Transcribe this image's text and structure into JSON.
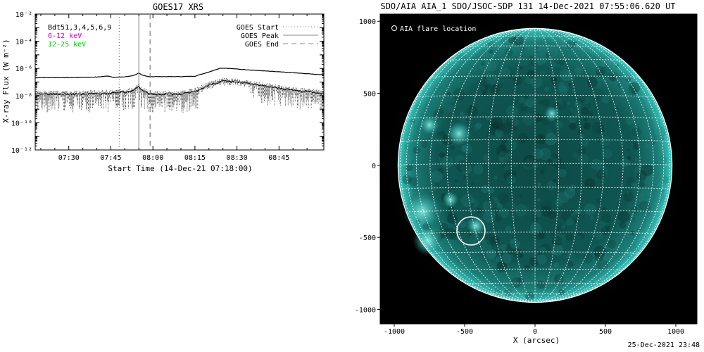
{
  "chart_data": [
    {
      "type": "line",
      "title": "GOES17 XRS",
      "xlabel": "Start Time (14-Dec-21 07:18:00)",
      "ylabel": "X-ray Flux (W m⁻²)",
      "x_ticks": [
        "07:30",
        "07:45",
        "08:00",
        "08:15",
        "08:30",
        "08:45"
      ],
      "xlim": [
        "07:18",
        "09:01"
      ],
      "y_scale": "log",
      "ylim": [
        1e-12,
        0.01
      ],
      "y_ticks": [
        {
          "value": 1e-12,
          "label": "10⁻¹²"
        },
        {
          "value": 1e-10,
          "label": "10⁻¹⁰"
        },
        {
          "value": 1e-08,
          "label": "10⁻⁸"
        },
        {
          "value": 1e-06,
          "label": "10⁻⁶"
        },
        {
          "value": 0.0001,
          "label": "10⁻⁴"
        },
        {
          "value": 0.01,
          "label": "10⁻²"
        }
      ],
      "legend_left": {
        "placement": "top-left",
        "entries": [
          {
            "label": "Bdt51,3,4,5,6,9",
            "color": "#000000"
          },
          {
            "label": "6-12 keV",
            "color": "#d400d4"
          },
          {
            "label": "12-25 keV",
            "color": "#00d400"
          }
        ]
      },
      "legend_right": {
        "placement": "top-right",
        "entries": [
          {
            "label": "GOES Start",
            "style": "dotted"
          },
          {
            "label": "GOES Peak",
            "style": "solid"
          },
          {
            "label": "GOES End",
            "style": "dashed"
          }
        ]
      },
      "event_lines": {
        "start": "07:48",
        "peak": "07:55",
        "end": "07:59"
      },
      "series": [
        {
          "color": "#000000",
          "style": "solid",
          "x": [
            "07:18",
            "07:30",
            "07:40",
            "07:44",
            "07:46",
            "07:50",
            "07:53",
            "07:55",
            "07:56",
            "07:58",
            "08:00",
            "08:05",
            "08:10",
            "08:15",
            "08:20",
            "08:24",
            "08:26",
            "08:30",
            "08:40",
            "08:50",
            "09:01"
          ],
          "y": [
            2.1e-07,
            2.1e-07,
            2.3e-07,
            2.8e-07,
            2.2e-07,
            2.4e-07,
            3e-07,
            4.5e-07,
            3.3e-07,
            2.6e-07,
            2.5e-07,
            2.5e-07,
            2.5e-07,
            2.7e-07,
            5.5e-07,
            1.05e-06,
            1.05e-06,
            9e-07,
            6.5e-07,
            4.8e-07,
            3.4e-07
          ]
        },
        {
          "color": "#000000",
          "style": "dotted-noisy",
          "x": [
            "07:18",
            "07:30",
            "07:40",
            "07:45",
            "07:50",
            "07:53",
            "07:55",
            "07:56",
            "07:58",
            "08:00",
            "08:05",
            "08:10",
            "08:15",
            "08:20",
            "08:25",
            "08:30",
            "08:40",
            "08:50",
            "09:01"
          ],
          "y": [
            1.3e-08,
            1.3e-08,
            1.4e-08,
            1.5e-08,
            1.8e-08,
            2.5e-08,
            4.5e-08,
            2.5e-08,
            1.5e-08,
            1.3e-08,
            1.3e-08,
            1.3e-08,
            2e-08,
            6e-08,
            1.2e-07,
            1e-07,
            5e-08,
            2.5e-08,
            1.5e-08
          ]
        }
      ]
    },
    {
      "type": "heatmap",
      "title": "SDO/AIA AIA_1 SDO/JSOC-SDP 131 14-Dec-2021 07:55:06.620 UT",
      "xlabel": "X (arcsec)",
      "ylabel": "",
      "xlim": [
        -1100,
        1150
      ],
      "ylim": [
        -1100,
        1050
      ],
      "x_ticks": [
        -1000,
        -500,
        0,
        500,
        1000
      ],
      "y_ticks": [
        -1000,
        -500,
        0,
        500,
        1000
      ],
      "grid": "heliographic, 10 deg",
      "solar_radius_arcsec": 973,
      "colormap": "aia131 (teal)",
      "legend": {
        "label": "AIA flare location",
        "placement": "top-left"
      },
      "flare_location": {
        "x": -455,
        "y": -455
      }
    }
  ],
  "footer": {
    "timestamp": "25-Dec-2021 23:48"
  }
}
